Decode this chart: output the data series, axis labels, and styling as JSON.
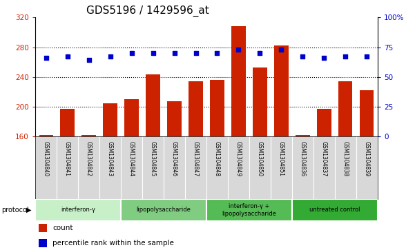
{
  "title": "GDS5196 / 1429596_at",
  "samples": [
    "GSM1304840",
    "GSM1304841",
    "GSM1304842",
    "GSM1304843",
    "GSM1304844",
    "GSM1304845",
    "GSM1304846",
    "GSM1304847",
    "GSM1304848",
    "GSM1304849",
    "GSM1304850",
    "GSM1304851",
    "GSM1304836",
    "GSM1304837",
    "GSM1304838",
    "GSM1304839"
  ],
  "counts": [
    162,
    197,
    162,
    204,
    210,
    243,
    207,
    234,
    236,
    308,
    253,
    282,
    162,
    197,
    234,
    222
  ],
  "percentile_ranks": [
    66,
    67,
    64,
    67,
    70,
    70,
    70,
    70,
    70,
    73,
    70,
    73,
    67,
    66,
    67,
    67
  ],
  "groups": [
    {
      "label": "interferon-γ",
      "start": 0,
      "end": 3,
      "color": "#c8f0c8"
    },
    {
      "label": "lipopolysaccharide",
      "start": 4,
      "end": 7,
      "color": "#80cc80"
    },
    {
      "label": "interferon-γ +\nlipopolysaccharide",
      "start": 8,
      "end": 11,
      "color": "#55bb55"
    },
    {
      "label": "untreated control",
      "start": 12,
      "end": 15,
      "color": "#33aa33"
    }
  ],
  "ylim_left": [
    160,
    320
  ],
  "ylim_right": [
    0,
    100
  ],
  "yticks_left": [
    160,
    200,
    240,
    280,
    320
  ],
  "yticks_right": [
    0,
    25,
    50,
    75,
    100
  ],
  "bar_color": "#cc2200",
  "dot_color": "#0000cc",
  "title_fontsize": 11,
  "tick_fontsize": 7.5,
  "sample_fontsize": 5.5,
  "label_bg": "#d8d8d8",
  "grid_lines": [
    200,
    240,
    280
  ]
}
